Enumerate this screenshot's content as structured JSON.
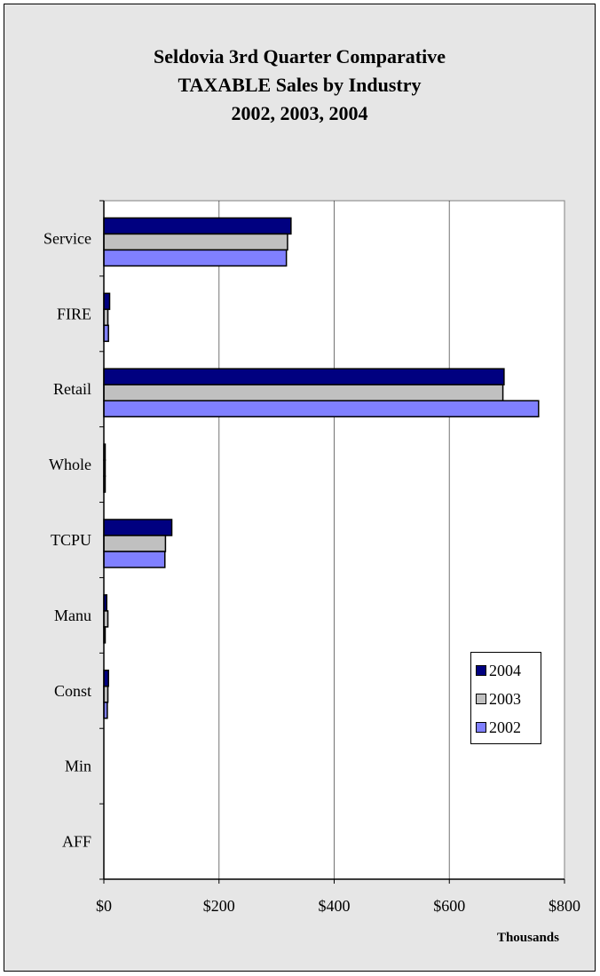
{
  "chart_data": {
    "type": "bar",
    "orientation": "horizontal",
    "title_lines": [
      "Seldovia 3rd Quarter Comparative",
      "TAXABLE Sales by Industry",
      "2002, 2003, 2004"
    ],
    "categories": [
      "Service",
      "FIRE",
      "Retail",
      "Whole",
      "TCPU",
      "Manu",
      "Const",
      "Min",
      "AFF"
    ],
    "series": [
      {
        "name": "2004",
        "color": "#000080",
        "values": [
          325,
          10,
          695,
          1,
          118,
          5,
          8,
          0,
          0
        ]
      },
      {
        "name": "2003",
        "color": "#c0c0c0",
        "values": [
          319,
          7,
          693,
          1,
          107,
          7,
          7,
          0,
          0
        ]
      },
      {
        "name": "2002",
        "color": "#8080ff",
        "values": [
          317,
          8,
          755,
          1,
          106,
          2,
          6,
          0,
          0
        ]
      }
    ],
    "xlim": [
      0,
      800
    ],
    "xticks": [
      0,
      200,
      400,
      600,
      800
    ],
    "xtick_labels": [
      "$0",
      "$200",
      "$400",
      "$600",
      "$800"
    ],
    "xlabel": "Thousands",
    "grid": true,
    "legend_position": "right",
    "plot_background": "#ffffff",
    "chart_background": "#e6e6e6"
  }
}
